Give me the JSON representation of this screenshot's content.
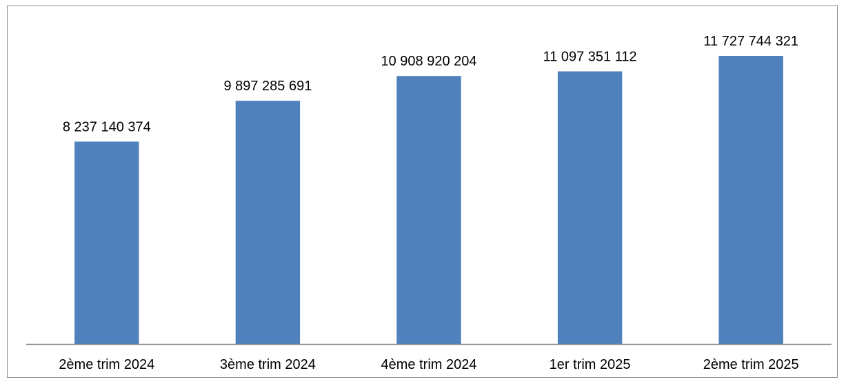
{
  "chart_data": {
    "type": "bar",
    "categories": [
      "2ème trim 2024",
      "3ème trim 2024",
      "4ème trim 2024",
      "1er trim 2025",
      "2ème trim 2025"
    ],
    "values": [
      8237140374,
      9897285691,
      10908920204,
      11097351112,
      11727744321
    ],
    "value_labels": [
      "8 237 140 374",
      "9 897 285 691",
      "10 908 920 204",
      "11 097 351 112",
      "11 727 744 321"
    ],
    "title": "",
    "xlabel": "",
    "ylabel": "",
    "ylim": [
      0,
      14000000000
    ],
    "grid": false,
    "legend": "none",
    "bar_color": "#4f81bd",
    "axis_color": "#868686",
    "border_color": "#8c8c8c"
  }
}
